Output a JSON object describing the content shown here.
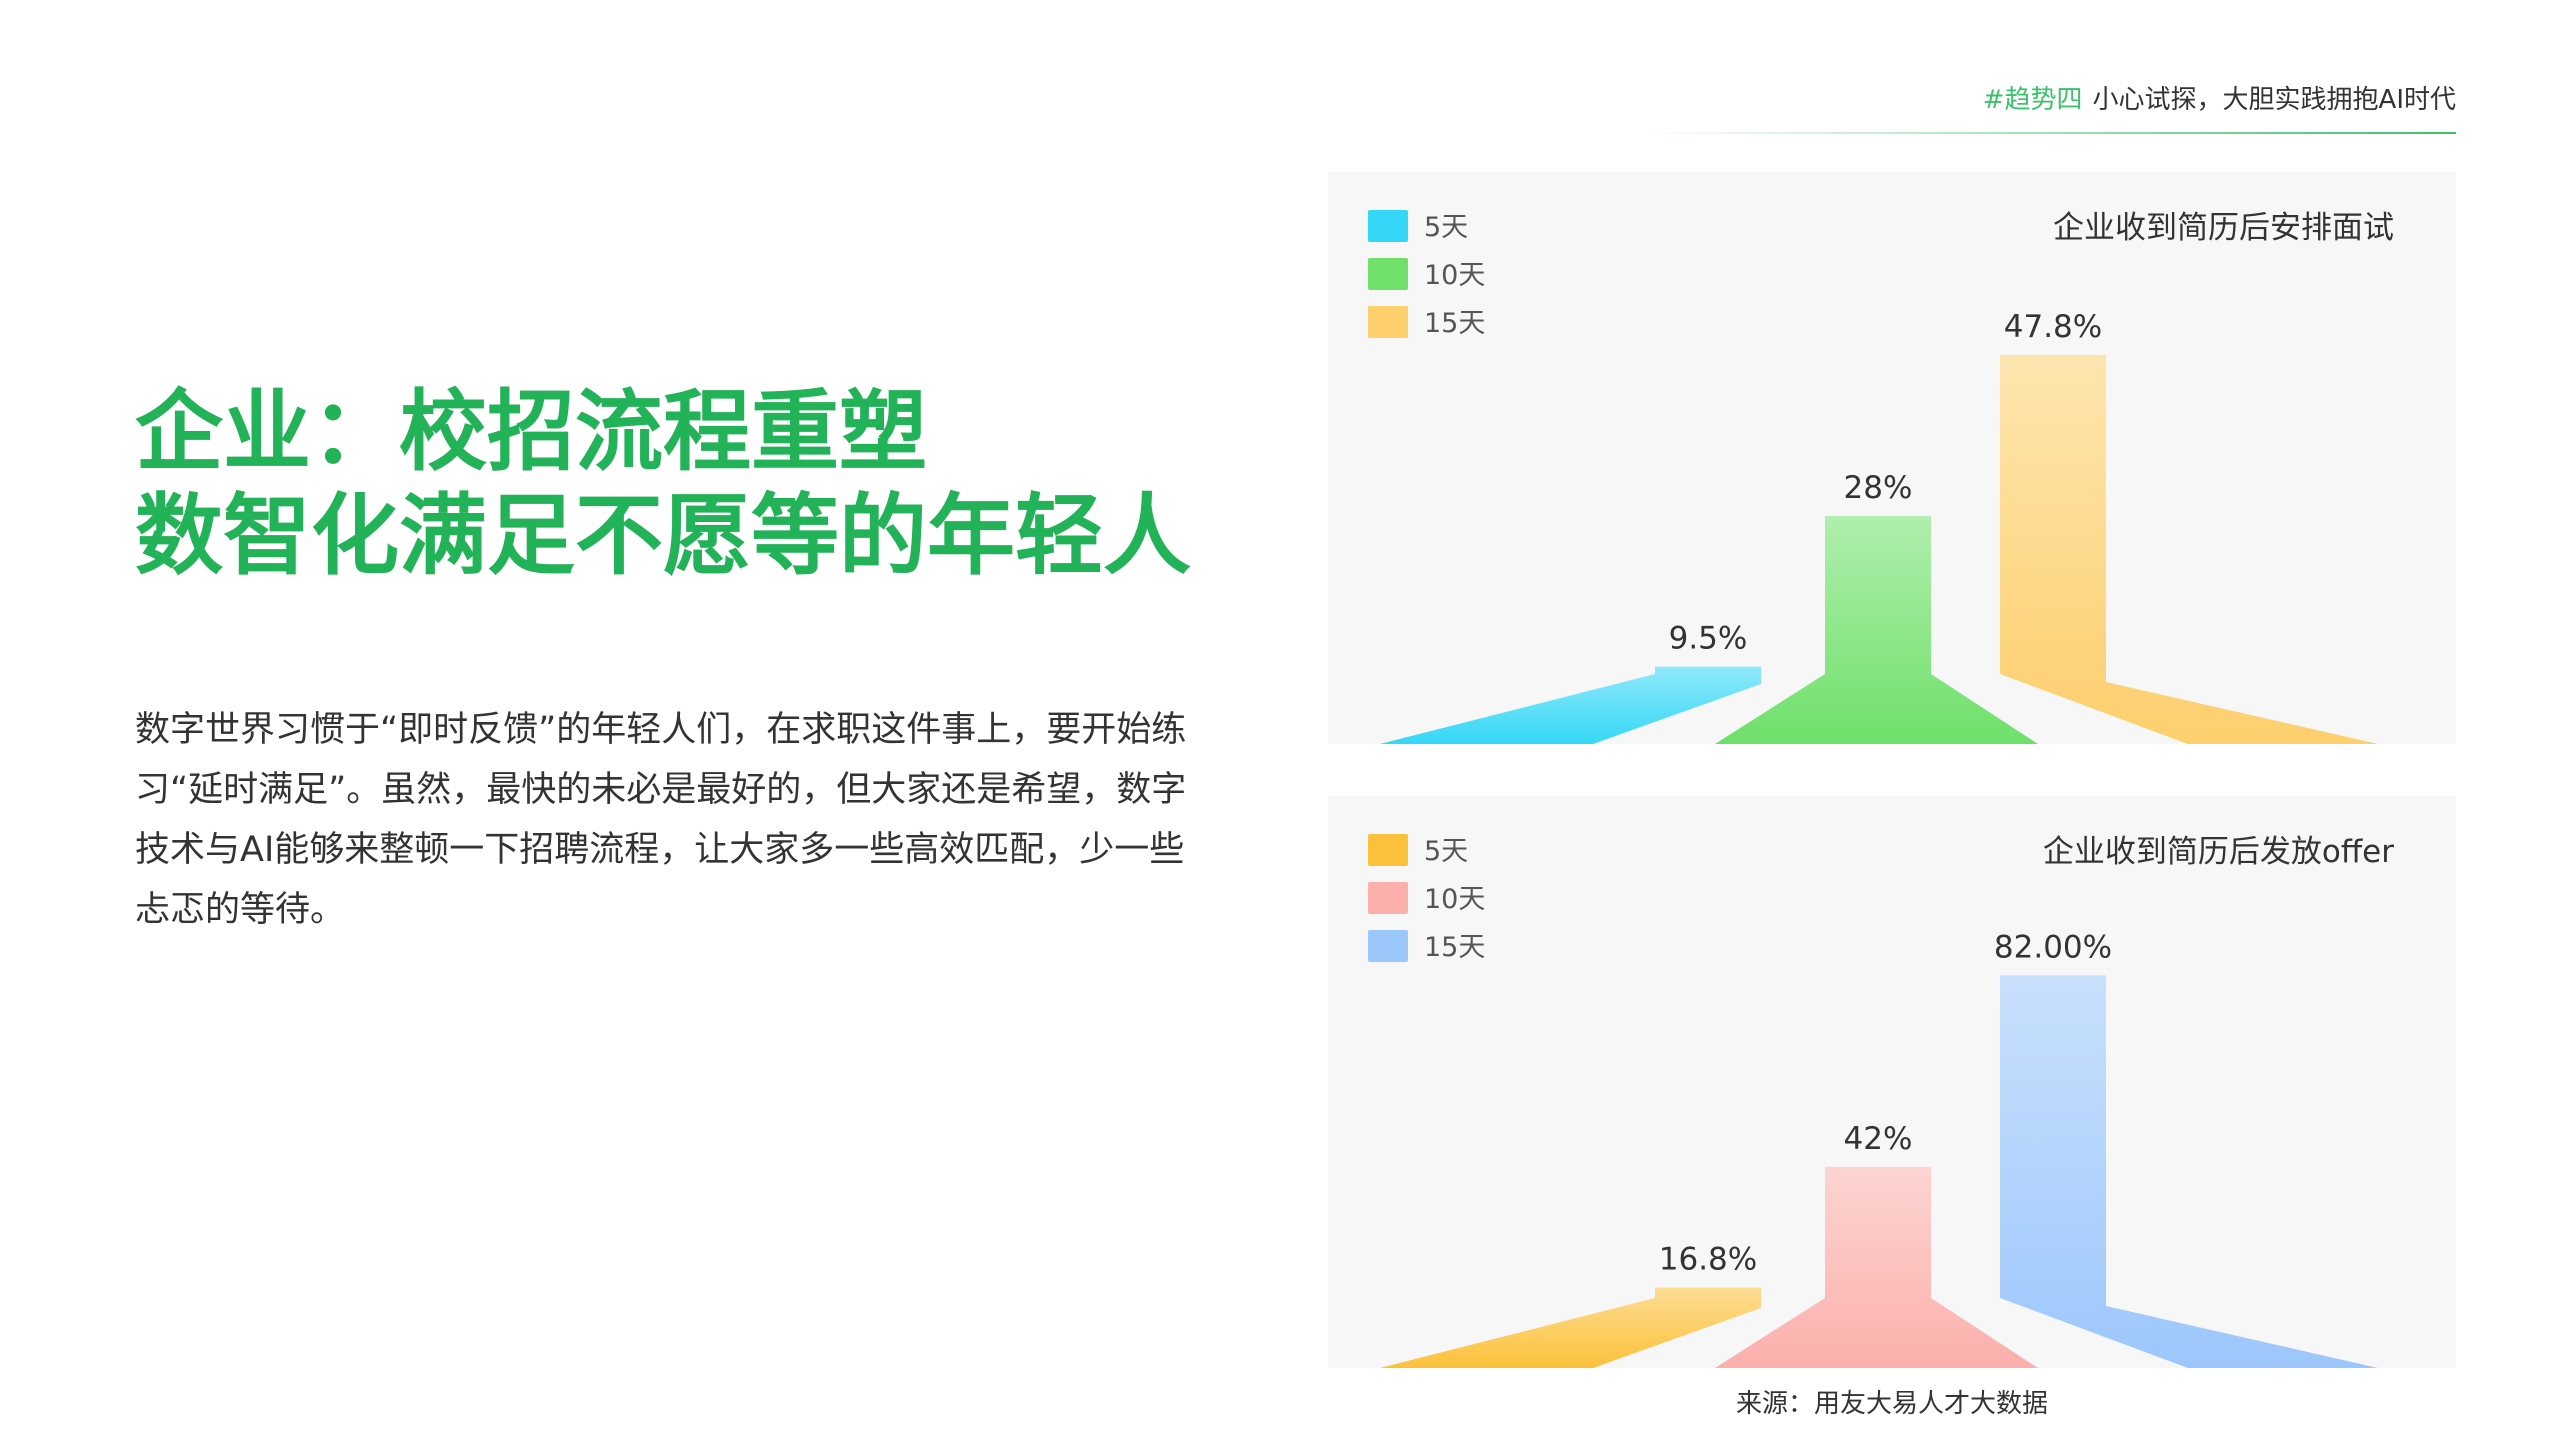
{
  "header": {
    "tag": "#趋势四",
    "subtitle": "小心试探，大胆实践拥抱AI时代"
  },
  "title": {
    "line1": "企业：校招流程重塑",
    "line2": "数智化满足不愿等的年轻人"
  },
  "body_text": "数字世界习惯于“即时反馈”的年轻人们，在求职这件事上，要开始练习“延时满足”。虽然，最快的未必是最好的，但大家还是希望，数字技术与AI能够来整顿一下招聘流程，让大家多一些高效匹配，少一些忐忑的等待。",
  "source": "来源：用友大易人才大数据",
  "chart_data": [
    {
      "type": "bar",
      "title": "企业收到简历后安排面试",
      "categories": [
        "5天",
        "10天",
        "15天"
      ],
      "values": [
        9.5,
        28,
        47.8
      ],
      "labels": [
        "9.5%",
        "28%",
        "47.8%"
      ],
      "colors": [
        "#35d7f6",
        "#6fe06a",
        "#fdcf6d"
      ],
      "ylim": [
        0,
        50
      ],
      "legend": "top-left"
    },
    {
      "type": "bar",
      "title": "企业收到简历后发放offer",
      "categories": [
        "5天",
        "10天",
        "15天"
      ],
      "values": [
        16.8,
        42,
        82.0
      ],
      "labels": [
        "16.8%",
        "42%",
        "82.00%"
      ],
      "colors": [
        "#fbc13a",
        "#fbb0ac",
        "#9cc7fb"
      ],
      "ylim": [
        0,
        85
      ],
      "legend": "top-left"
    }
  ]
}
